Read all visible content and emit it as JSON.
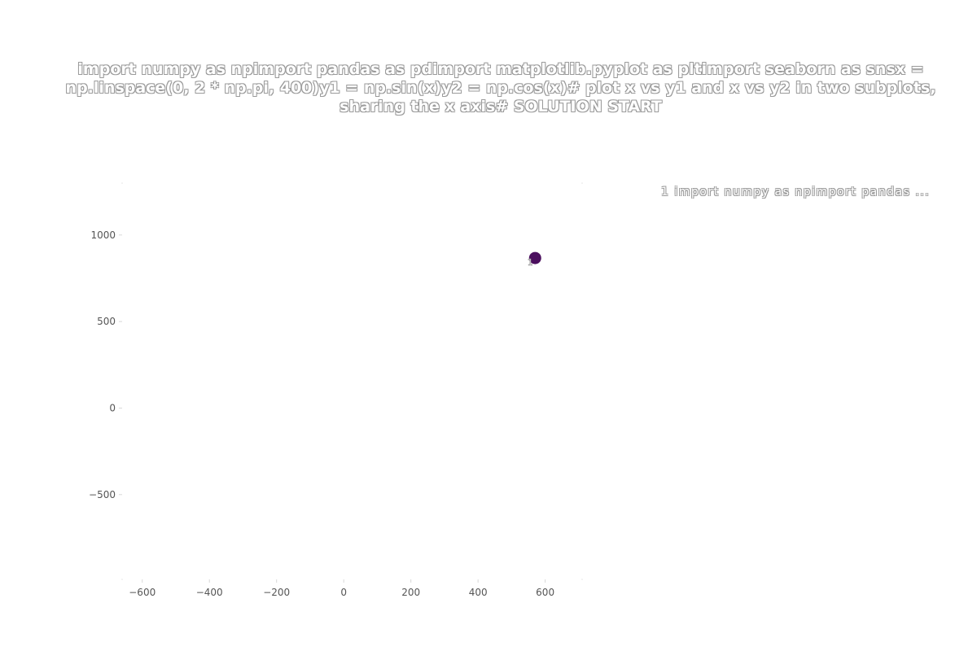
{
  "chart_data": {
    "type": "scatter",
    "title": "import numpy as npimport pandas as pdimport matplotlib.pyplot as pltimport seaborn as snsx = np.linspace(0, 2 * np.pi, 400)y1 = np.sin(x)y2 = np.cos(x)# plot x vs y1 and x vs y2 in two subplots, sharing the x axis# SOLUTION START",
    "xlabel": "",
    "ylabel": "",
    "xlim": [
      -660,
      710
    ],
    "ylim": [
      -990,
      1300
    ],
    "xticks": [
      -600,
      -400,
      -200,
      0,
      200,
      400,
      600
    ],
    "xtick_labels": [
      "−600",
      "−400",
      "−200",
      "0",
      "200",
      "400",
      "600"
    ],
    "yticks": [
      -500,
      0,
      500,
      1000
    ],
    "ytick_labels": [
      "−500",
      "0",
      "500",
      "1000"
    ],
    "grid": false,
    "legend_position": "right",
    "legend": [
      {
        "label": "1 import numpy as npimport pandas ..."
      }
    ],
    "points": [
      {
        "x": 570,
        "y": 867,
        "label": "1",
        "color": "#4b0f5e"
      }
    ]
  }
}
